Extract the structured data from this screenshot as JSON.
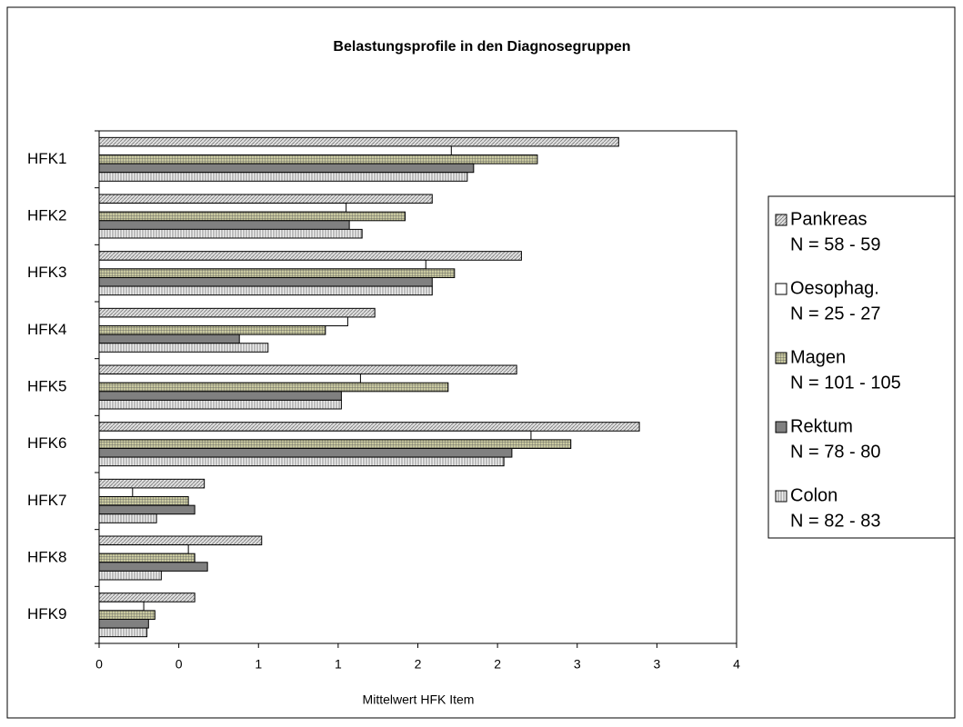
{
  "chart_data": {
    "type": "bar",
    "orientation": "horizontal",
    "title": "Belastungsprofile in den Diagnosegruppen",
    "x_label": "Mittelwert HFK Item",
    "categories": [
      "HFK1",
      "HFK2",
      "HFK3",
      "HFK4",
      "HFK5",
      "HFK6",
      "HFK7",
      "HFK8",
      "HFK9"
    ],
    "series": [
      {
        "name": "Pankreas",
        "note": "N = 58 - 59",
        "color": "#c8c8c8",
        "pattern": "diagonal",
        "values": [
          3.26,
          2.09,
          2.65,
          1.73,
          2.62,
          3.39,
          0.66,
          1.02,
          0.6
        ]
      },
      {
        "name": "Oesophag.",
        "note": "N = 25 - 27",
        "color": "#ffffff",
        "pattern": "none",
        "values": [
          2.21,
          1.55,
          2.05,
          1.56,
          1.64,
          2.71,
          0.21,
          0.56,
          0.28
        ]
      },
      {
        "name": "Magen",
        "note": "N = 101 - 105",
        "color": "#a9a97a",
        "pattern": "grid",
        "values": [
          2.75,
          1.92,
          2.23,
          1.42,
          2.19,
          2.96,
          0.56,
          0.6,
          0.35
        ]
      },
      {
        "name": "Rektum",
        "note": "N = 78 - 80",
        "color": "#808080",
        "pattern": "none",
        "values": [
          2.35,
          1.57,
          2.09,
          0.88,
          1.52,
          2.59,
          0.6,
          0.68,
          0.31
        ]
      },
      {
        "name": "Colon",
        "note": "N = 82 - 83",
        "color": "#d8d8d8",
        "pattern": "vertical",
        "values": [
          2.31,
          1.65,
          2.09,
          1.06,
          1.52,
          2.54,
          0.36,
          0.39,
          0.3
        ]
      }
    ],
    "xlim": [
      0,
      4
    ],
    "xticks": [
      0,
      {
        "value": 0.5,
        "label": "0"
      },
      1,
      {
        "value": 1.5,
        "label": "1"
      },
      2,
      {
        "value": 2.5,
        "label": "2"
      },
      3,
      {
        "value": 3.5,
        "label": "3"
      },
      4
    ],
    "grid": false,
    "legend": "right"
  }
}
